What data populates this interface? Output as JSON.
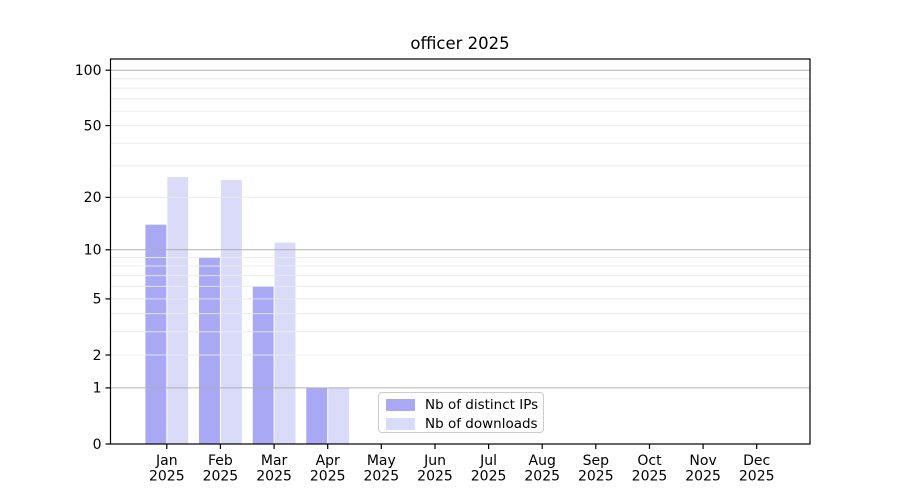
{
  "title": "officer 2025",
  "chart_data": {
    "type": "bar",
    "title": "officer 2025",
    "categories": [
      "Jan",
      "Feb",
      "Mar",
      "Apr",
      "May",
      "Jun",
      "Jul",
      "Aug",
      "Sep",
      "Oct",
      "Nov",
      "Dec"
    ],
    "year": "2025",
    "x_tick_labels": [
      "Jan 2025",
      "Feb 2025",
      "Mar 2025",
      "Apr 2025",
      "May 2025",
      "Jun 2025",
      "Jul 2025",
      "Aug 2025",
      "Sep 2025",
      "Oct 2025",
      "Nov 2025",
      "Dec 2025"
    ],
    "series": [
      {
        "name": "Nb of distinct IPs",
        "color": "#a8a8f4",
        "values": [
          14,
          9,
          6,
          1,
          0,
          0,
          0,
          0,
          0,
          0,
          0,
          0
        ]
      },
      {
        "name": "Nb of downloads",
        "color": "#dadaf9",
        "values": [
          26,
          25,
          11,
          1,
          0,
          0,
          0,
          0,
          0,
          0,
          0,
          0
        ]
      }
    ],
    "xlabel": "",
    "ylabel": "",
    "y_axis": {
      "scale": "log1p",
      "ticks": [
        0,
        1,
        2,
        5,
        10,
        20,
        50,
        100
      ],
      "major_gridlines": [
        1,
        10,
        100
      ],
      "minor_gridlines": [
        2,
        3,
        4,
        5,
        6,
        7,
        8,
        9,
        20,
        30,
        40,
        50,
        60,
        70,
        80,
        90
      ],
      "ylim": [
        0,
        115
      ]
    },
    "legend": {
      "position": "lower-center",
      "items": [
        "Nb of distinct IPs",
        "Nb of downloads"
      ]
    },
    "grid": true
  },
  "colors": {
    "series_distinct_ips": "#a8a8f4",
    "series_downloads": "#dadaf9",
    "major_grid": "#b0b0b0",
    "minor_grid": "#eaeaea",
    "axis": "#000000",
    "background": "#ffffff"
  }
}
